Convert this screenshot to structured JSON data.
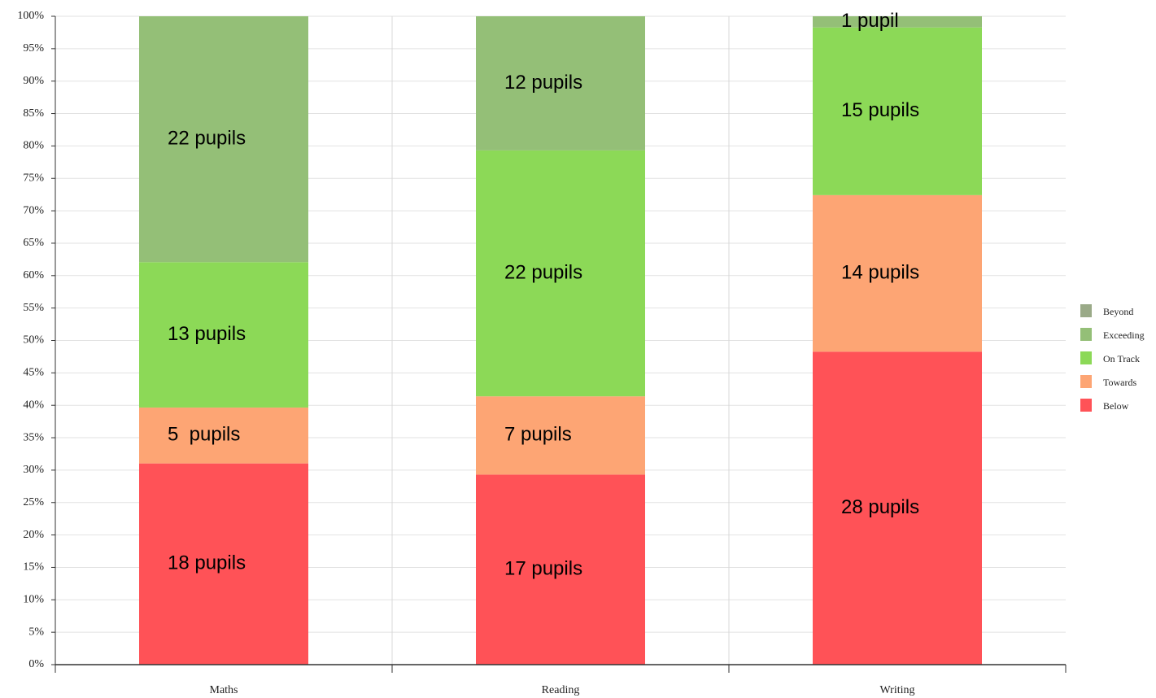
{
  "chart_data": {
    "type": "bar",
    "stacking": "percent",
    "categories": [
      "Maths",
      "Reading",
      "Writing"
    ],
    "series": [
      {
        "name": "Below",
        "color": "#ff5257",
        "values": [
          18,
          17,
          28
        ],
        "value_labels": [
          "18 pupils",
          "17 pupils",
          "28 pupils"
        ]
      },
      {
        "name": "Towards",
        "color": "#fda574",
        "values": [
          5,
          7,
          14
        ],
        "value_labels": [
          "5  pupils",
          "7 pupils",
          "14 pupils"
        ]
      },
      {
        "name": "On Track",
        "color": "#8cd957",
        "values": [
          13,
          22,
          15
        ],
        "value_labels": [
          "13 pupils",
          "22 pupils",
          "15 pupils"
        ]
      },
      {
        "name": "Exceeding",
        "color": "#94bf77",
        "values": [
          22,
          12,
          1
        ],
        "value_labels": [
          "22 pupils",
          "12 pupils",
          "1 pupil"
        ]
      },
      {
        "name": "Beyond",
        "color": "#9aaa88",
        "values": [
          null,
          null,
          null
        ]
      }
    ],
    "ylim": [
      0,
      100
    ],
    "yticks": [
      {
        "value": 0,
        "label": "0%"
      },
      {
        "value": 5,
        "label": "5%"
      },
      {
        "value": 10,
        "label": "10%"
      },
      {
        "value": 15,
        "label": "15%"
      },
      {
        "value": 20,
        "label": "20%"
      },
      {
        "value": 25,
        "label": "25%"
      },
      {
        "value": 30,
        "label": "30%"
      },
      {
        "value": 35,
        "label": "35%"
      },
      {
        "value": 40,
        "label": "40%"
      },
      {
        "value": 45,
        "label": "45%"
      },
      {
        "value": 50,
        "label": "50%"
      },
      {
        "value": 55,
        "label": "55%"
      },
      {
        "value": 60,
        "label": "60%"
      },
      {
        "value": 65,
        "label": "65%"
      },
      {
        "value": 70,
        "label": "70%"
      },
      {
        "value": 75,
        "label": "75%"
      },
      {
        "value": 80,
        "label": "80%"
      },
      {
        "value": 85,
        "label": "85%"
      },
      {
        "value": 90,
        "label": "90%"
      },
      {
        "value": 95,
        "label": "95%"
      },
      {
        "value": 100,
        "label": "100%"
      }
    ],
    "grid": true,
    "legend": "right"
  }
}
